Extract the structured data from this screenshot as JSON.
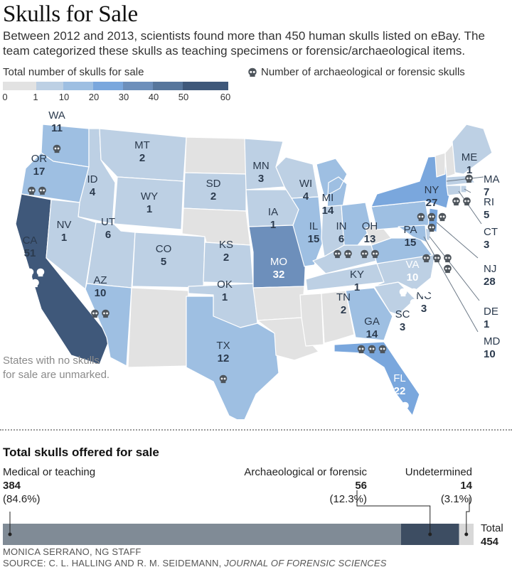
{
  "title": "Skulls for Sale",
  "subtitle": "Between 2012 and 2013, scientists found more than 450 human skulls listed on eBay. The team categorized these skulls as teaching specimens or forensic/archaeological items.",
  "legend": {
    "title": "Total number of skulls for sale",
    "skull_label": "Number of archaeological or forensic skulls",
    "ticks": [
      "0",
      "1",
      "10",
      "20",
      "30",
      "40",
      "50",
      "60"
    ],
    "colors": [
      "#e2e2e2",
      "#bdd0e4",
      "#9ebfe2",
      "#7aa7dd",
      "#6d8fbb",
      "#57769c",
      "#3f587a",
      "#2d3d52"
    ]
  },
  "note": [
    "States with no skulls",
    "for sale are unmarked."
  ],
  "states": [
    {
      "abbr": "WA",
      "total": "11",
      "skulls": 1
    },
    {
      "abbr": "OR",
      "total": "17",
      "skulls": 2
    },
    {
      "abbr": "CA",
      "total": "51",
      "skulls": 5
    },
    {
      "abbr": "ID",
      "total": "4",
      "skulls": 0
    },
    {
      "abbr": "NV",
      "total": "1",
      "skulls": 0
    },
    {
      "abbr": "MT",
      "total": "2",
      "skulls": 0
    },
    {
      "abbr": "WY",
      "total": "1",
      "skulls": 0
    },
    {
      "abbr": "UT",
      "total": "6",
      "skulls": 0
    },
    {
      "abbr": "CO",
      "total": "5",
      "skulls": 0
    },
    {
      "abbr": "AZ",
      "total": "10",
      "skulls": 2
    },
    {
      "abbr": "SD",
      "total": "2",
      "skulls": 0
    },
    {
      "abbr": "KS",
      "total": "2",
      "skulls": 0
    },
    {
      "abbr": "OK",
      "total": "1",
      "skulls": 0
    },
    {
      "abbr": "TX",
      "total": "12",
      "skulls": 1
    },
    {
      "abbr": "MN",
      "total": "3",
      "skulls": 0
    },
    {
      "abbr": "IA",
      "total": "1",
      "skulls": 0
    },
    {
      "abbr": "MO",
      "total": "32",
      "skulls": 0
    },
    {
      "abbr": "WI",
      "total": "4",
      "skulls": 0
    },
    {
      "abbr": "IL",
      "total": "15",
      "skulls": 0
    },
    {
      "abbr": "MI",
      "total": "14",
      "skulls": 0
    },
    {
      "abbr": "IN",
      "total": "6",
      "skulls": 2
    },
    {
      "abbr": "OH",
      "total": "13",
      "skulls": 2
    },
    {
      "abbr": "KY",
      "total": "1",
      "skulls": 0
    },
    {
      "abbr": "TN",
      "total": "2",
      "skulls": 0
    },
    {
      "abbr": "GA",
      "total": "14",
      "skulls": 3
    },
    {
      "abbr": "FL",
      "total": "22",
      "skulls": 2
    },
    {
      "abbr": "SC",
      "total": "3",
      "skulls": 0
    },
    {
      "abbr": "NC",
      "total": "3",
      "skulls": 0
    },
    {
      "abbr": "VA",
      "total": "10",
      "skulls": 4
    },
    {
      "abbr": "PA",
      "total": "15",
      "skulls": 0
    },
    {
      "abbr": "NY",
      "total": "27",
      "skulls": 4
    },
    {
      "abbr": "ME",
      "total": "1",
      "skulls": 0
    },
    {
      "abbr": "MA",
      "total": "7",
      "skulls": 1
    },
    {
      "abbr": "RI",
      "total": "5",
      "skulls": 2
    },
    {
      "abbr": "CT",
      "total": "3",
      "skulls": 0
    },
    {
      "abbr": "NJ",
      "total": "28",
      "skulls": 4
    },
    {
      "abbr": "DE",
      "total": "1",
      "skulls": 0
    },
    {
      "abbr": "MD",
      "total": "10",
      "skulls": 0
    }
  ],
  "totals": {
    "title": "Total skulls offered for sale",
    "categories": [
      {
        "label": "Medical or teaching",
        "value": "384",
        "percent": "(84.6%)",
        "color": "#808b96"
      },
      {
        "label": "Archaeological or forensic",
        "value": "56",
        "percent": "(12.3%)",
        "color": "#3d4d62"
      },
      {
        "label": "Undetermined",
        "value": "14",
        "percent": "(3.1%)",
        "color": "#d8d8d8"
      }
    ],
    "total_label": "Total",
    "total_value": "454"
  },
  "credit": {
    "line1": "MONICA SERRANO, NG STAFF",
    "line2_prefix": "SOURCE: C. L. HALLING AND R. M. SEIDEMANN, ",
    "line2_journal": "JOURNAL OF FORENSIC SCIENCES"
  }
}
